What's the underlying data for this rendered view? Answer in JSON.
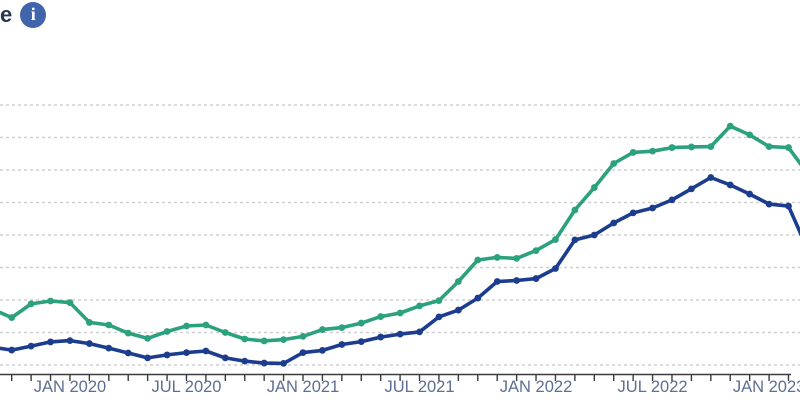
{
  "header": {
    "title_fragment": "e",
    "info_icon_glyph": "i"
  },
  "colors": {
    "series_green": "#2BA17D",
    "series_blue": "#1C3D8E",
    "info_icon_bg": "#4164AA",
    "axis_line": "#3A3B3D",
    "tick_label": "#5D6F93",
    "gridline": "#CFCFCF",
    "title_text": "#273750"
  },
  "chart_data": {
    "type": "line",
    "x": [
      "Oct 2019",
      "Nov 2019",
      "Dec 2019",
      "Jan 2020",
      "Feb 2020",
      "Mar 2020",
      "Apr 2020",
      "May 2020",
      "Jun 2020",
      "Jul 2020",
      "Aug 2020",
      "Sep 2020",
      "Oct 2020",
      "Nov 2020",
      "Dec 2020",
      "Jan 2021",
      "Feb 2021",
      "Mar 2021",
      "Apr 2021",
      "May 2021",
      "Jun 2021",
      "Jul 2021",
      "Aug 2021",
      "Sep 2021",
      "Oct 2021",
      "Nov 2021",
      "Dec 2021",
      "Jan 2022",
      "Feb 2022",
      "Mar 2022",
      "Apr 2022",
      "May 2022",
      "Jun 2022",
      "Jul 2022",
      "Aug 2022",
      "Sep 2022",
      "Oct 2022",
      "Nov 2022",
      "Dec 2022",
      "Jan 2023",
      "Feb 2023"
    ],
    "series": [
      {
        "name": "green-series",
        "color_key": "series_green",
        "values": [
          1.46,
          1.88,
          1.97,
          1.92,
          1.31,
          1.23,
          0.98,
          0.82,
          1.03,
          1.2,
          1.23,
          1.0,
          0.8,
          0.74,
          0.78,
          0.88,
          1.09,
          1.15,
          1.29,
          1.49,
          1.6,
          1.82,
          1.98,
          2.57,
          3.23,
          3.31,
          3.28,
          3.52,
          3.86,
          4.77,
          5.46,
          6.2,
          6.54,
          6.58,
          6.69,
          6.71,
          6.72,
          7.35,
          7.08,
          6.72,
          6.69
        ]
      },
      {
        "name": "blue-series",
        "color_key": "series_blue",
        "values": [
          0.46,
          0.58,
          0.71,
          0.75,
          0.66,
          0.52,
          0.37,
          0.22,
          0.31,
          0.38,
          0.43,
          0.22,
          0.12,
          0.06,
          0.05,
          0.38,
          0.45,
          0.63,
          0.72,
          0.86,
          0.95,
          1.02,
          1.48,
          1.69,
          2.06,
          2.57,
          2.6,
          2.66,
          2.97,
          3.85,
          4.0,
          4.37,
          4.68,
          4.83,
          5.08,
          5.42,
          5.77,
          5.54,
          5.26,
          4.95,
          4.89
        ]
      }
    ],
    "x_tick_labels": [
      {
        "label": "JAN 2020",
        "month_index": 3
      },
      {
        "label": "JUL 2020",
        "month_index": 9
      },
      {
        "label": "JAN 2021",
        "month_index": 15
      },
      {
        "label": "JUL 2021",
        "month_index": 21
      },
      {
        "label": "JAN 2022",
        "month_index": 27
      },
      {
        "label": "JUL 2022",
        "month_index": 33
      },
      {
        "label": "JAN 2023",
        "month_index": 39
      }
    ],
    "y_axis": {
      "unit": "gridline-index (0 = bottom gridline, +1 per gridline; value labels cropped out of frame)",
      "gridlines_at": [
        0,
        1,
        2,
        3,
        4,
        5,
        6,
        7,
        8
      ],
      "ylim": [
        -0.3,
        8.3
      ]
    },
    "offscreen_continuation": {
      "left": {
        "green": 1.72,
        "blue": 0.55
      },
      "right": {
        "green": 5.88,
        "blue": 3.54
      }
    },
    "grid": "dashed horizontal lines, no vertical grid",
    "legend_position": "none visible"
  }
}
